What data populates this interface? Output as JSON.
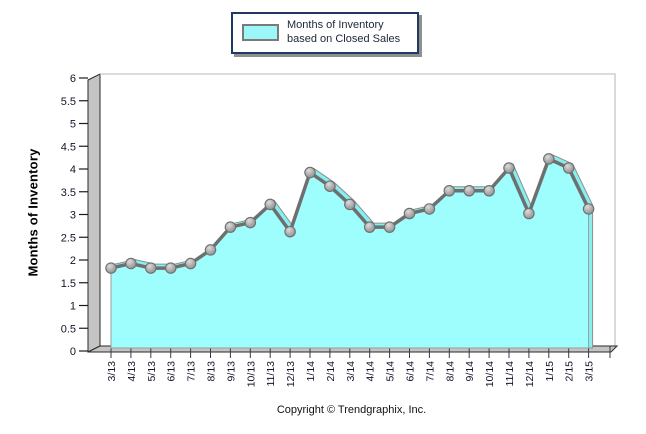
{
  "legend": {
    "label": "Months of Inventory based on Closed Sales"
  },
  "y_axis": {
    "title": "Months of Inventory"
  },
  "footer": {
    "copyright": "Copyright © Trendgraphix, Inc."
  },
  "colors": {
    "area": "#9EFDFD",
    "ribbon": "#85F0F0",
    "ribbon_edge": "#8f8f8f",
    "line": "#6F6F6F",
    "marker_stroke": "#6e6e6e",
    "wall": "#C4C4C4",
    "wall_outline": "#2a2a2a",
    "frame": "#C6C6C6",
    "tick_label": "#14142a",
    "legend_border": "#1F3864",
    "swatch": "#9CF8F8"
  },
  "chart_data": {
    "type": "area",
    "title": "Months of Inventory based on Closed Sales",
    "xlabel": "",
    "ylabel": "Months of Inventory",
    "ylim": [
      0,
      6
    ],
    "ytick_step": 0.5,
    "y_ticks": [
      "0",
      "0.5",
      "1",
      "1.5",
      "2",
      "2.5",
      "3",
      "3.5",
      "4",
      "4.5",
      "5",
      "5.5",
      "6"
    ],
    "grid": false,
    "legend_position": "top-center",
    "categories": [
      "3/13",
      "4/13",
      "5/13",
      "6/13",
      "7/13",
      "8/13",
      "9/13",
      "10/13",
      "11/13",
      "12/13",
      "1/14",
      "2/14",
      "3/14",
      "4/14",
      "5/14",
      "6/14",
      "7/14",
      "8/14",
      "9/14",
      "10/14",
      "11/14",
      "12/14",
      "1/15",
      "2/15",
      "3/15"
    ],
    "series": [
      {
        "name": "Months of Inventory based on Closed Sales",
        "values": [
          1.8,
          1.9,
          1.8,
          1.8,
          1.9,
          2.2,
          2.7,
          2.8,
          3.2,
          2.6,
          3.9,
          3.6,
          3.2,
          2.7,
          2.7,
          3.0,
          3.1,
          3.5,
          3.5,
          3.5,
          4.0,
          3.0,
          4.2,
          4.0,
          3.1
        ]
      }
    ]
  }
}
